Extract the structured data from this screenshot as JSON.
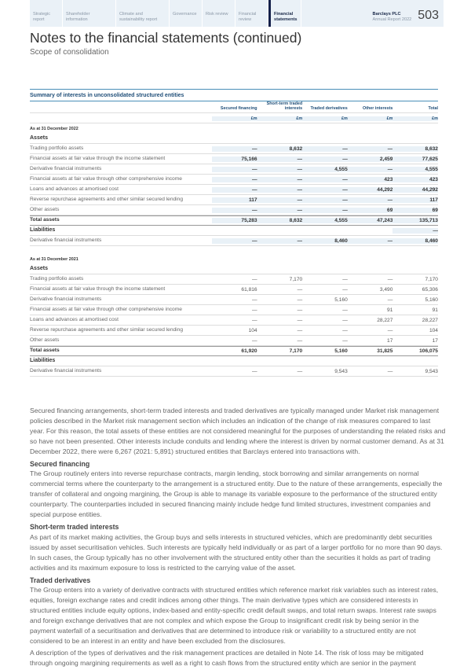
{
  "nav": {
    "items": [
      {
        "label": "Strategic report"
      },
      {
        "label": "Shareholder information"
      },
      {
        "label": "Climate and sustainability report"
      },
      {
        "label": "Governance"
      },
      {
        "label": "Risk review"
      },
      {
        "label": "Financial review"
      },
      {
        "label": "Financial statements",
        "active": true
      }
    ],
    "company": "Barclays PLC",
    "report": "Annual Report 2022",
    "page": "503"
  },
  "title": "Notes to the financial statements (continued)",
  "subtitle": "Scope of consolidation",
  "table": {
    "caption": "Summary of interests in unconsolidated structured entities",
    "columns": [
      "Secured financing",
      "Short-term traded interests",
      "Traded derivatives",
      "Other interests",
      "Total"
    ],
    "units": [
      "£m",
      "£m",
      "£m",
      "£m",
      "£m"
    ],
    "sections": [
      {
        "date": "As at 31 December 2022",
        "bold": true,
        "rows": [
          {
            "type": "sec",
            "label": "Assets",
            "values": [
              "",
              "",
              "",
              "",
              ""
            ]
          },
          {
            "label": "Trading portfolio assets",
            "values": [
              "—",
              "8,632",
              "—",
              "—",
              "8,632"
            ]
          },
          {
            "label": "Financial assets at fair value through the income statement",
            "values": [
              "75,166",
              "—",
              "—",
              "2,459",
              "77,625"
            ]
          },
          {
            "label": "Derivative financial instruments",
            "values": [
              "—",
              "—",
              "4,555",
              "—",
              "4,555"
            ]
          },
          {
            "label": "Financial assets at fair value through other comprehensive income",
            "values": [
              "—",
              "—",
              "—",
              "423",
              "423"
            ]
          },
          {
            "label": "Loans and advances at amortised cost",
            "values": [
              "—",
              "—",
              "—",
              "44,292",
              "44,292"
            ]
          },
          {
            "label": "Reverse repurchase agreements and other similar secured lending",
            "values": [
              "117",
              "—",
              "—",
              "—",
              "117"
            ]
          },
          {
            "label": "Other assets",
            "values": [
              "—",
              "—",
              "—",
              "69",
              "69"
            ]
          },
          {
            "type": "total",
            "label": "Total assets",
            "values": [
              "75,283",
              "8,632",
              "4,555",
              "47,243",
              "135,713"
            ]
          },
          {
            "type": "sec",
            "label": "Liabilities",
            "values": [
              "",
              "",
              "",
              "",
              "—"
            ]
          },
          {
            "label": "Derivative financial instruments",
            "values": [
              "—",
              "—",
              "8,460",
              "—",
              "8,460"
            ]
          }
        ]
      },
      {
        "date": "As at 31 December 2021",
        "bold": false,
        "rows": [
          {
            "type": "sec",
            "label": "Assets",
            "values": [
              "",
              "",
              "",
              "",
              ""
            ]
          },
          {
            "label": "Trading portfolio assets",
            "values": [
              "—",
              "7,170",
              "—",
              "—",
              "7,170"
            ]
          },
          {
            "label": "Financial assets at fair value through the income statement",
            "values": [
              "61,816",
              "—",
              "—",
              "3,490",
              "65,306"
            ]
          },
          {
            "label": "Derivative financial instruments",
            "values": [
              "—",
              "—",
              "5,160",
              "—",
              "5,160"
            ]
          },
          {
            "label": "Financial assets at fair value through other comprehensive income",
            "values": [
              "—",
              "—",
              "—",
              "91",
              "91"
            ]
          },
          {
            "label": "Loans and advances at amortised cost",
            "values": [
              "—",
              "—",
              "—",
              "28,227",
              "28,227"
            ]
          },
          {
            "label": "Reverse repurchase agreements and other similar secured lending",
            "values": [
              "104",
              "—",
              "—",
              "—",
              "104"
            ]
          },
          {
            "label": "Other assets",
            "values": [
              "—",
              "—",
              "—",
              "17",
              "17"
            ]
          },
          {
            "type": "total",
            "label": "Total assets",
            "values": [
              "61,920",
              "7,170",
              "5,160",
              "31,825",
              "106,075"
            ]
          },
          {
            "type": "sec",
            "label": "Liabilities",
            "values": [
              "",
              "",
              "",
              "",
              ""
            ]
          },
          {
            "label": "Derivative financial instruments",
            "values": [
              "—",
              "—",
              "9,543",
              "—",
              "9,543"
            ]
          }
        ]
      }
    ]
  },
  "body": [
    {
      "p": "Secured financing arrangements, short-term traded interests and traded derivatives are typically managed under Market risk management policies described in the Market risk management section which includes an indication of the change of risk measures compared to last year. For this reason, the total assets of these entities are not considered meaningful for the purposes of understanding the related risks and so have not been presented. Other interests include conduits and lending where the interest is driven by normal customer demand. As at 31 December 2022, there were 6,267 (2021: 5,891) structured entities that Barclays entered into transactions with."
    },
    {
      "h": "Secured financing"
    },
    {
      "p": "The Group routinely enters into reverse repurchase contracts, margin lending, stock borrowing and similar arrangements on normal commercial terms where the counterparty to the arrangement is a structured entity. Due to the nature of these arrangements, especially the transfer of collateral and ongoing margining, the Group is able to manage its variable exposure to the performance of the structured entity counterparty. The counterparties included in secured financing mainly include hedge fund limited structures, investment companies and special purpose entities."
    },
    {
      "h": "Short-term traded interests"
    },
    {
      "p": "As part of its market making activities, the Group buys and sells interests in structured vehicles, which are predominantly debt securities issued by asset securitisation vehicles. Such interests are typically held individually or as part of a larger portfolio for no more than 90 days. In such cases, the Group typically has no other involvement with the structured entity other than the securities it holds as part of trading activities and its maximum exposure to loss is restricted to the carrying value of the asset."
    },
    {
      "h": "Traded derivatives"
    },
    {
      "p": "The Group enters into a variety of derivative contracts with structured entities which reference market risk variables such as interest rates, equities, foreign exchange rates and credit indices among other things. The main derivative types which are considered interests in structured entities include equity options, index-based and entity-specific credit default swaps, and total return swaps.  Interest rate swaps and foreign exchange derivatives that are not complex and which expose the Group to insignificant credit risk by being senior in the payment waterfall of a securitisation and derivatives that are determined to introduce risk or variability to a structured entity are not considered to be an interest in an entity and have been excluded from the disclosures."
    },
    {
      "p": "A description of the types of derivatives and the risk management practices are detailed in Note 14.  The risk of loss may be mitigated through ongoing margining requirements as well as a right to cash flows from the structured entity which are senior in the payment"
    }
  ]
}
